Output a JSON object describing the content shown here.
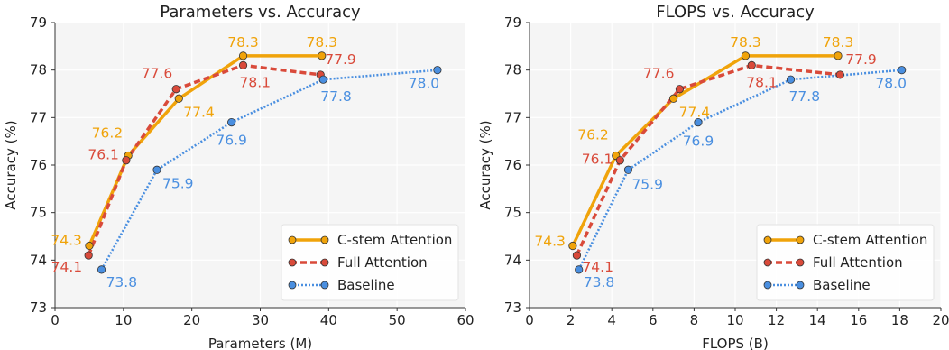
{
  "chart_data": [
    {
      "type": "line",
      "title": "Parameters vs. Accuracy",
      "xlabel": "Parameters (M)",
      "ylabel": "Accuracy (%)",
      "xlim": [
        0,
        60
      ],
      "ylim": [
        73,
        79
      ],
      "xticks": [
        "0",
        "10",
        "20",
        "30",
        "40",
        "50",
        "60"
      ],
      "yticks": [
        "73",
        "74",
        "75",
        "76",
        "77",
        "78",
        "79"
      ],
      "grid": true,
      "legend_position": "bottom-right",
      "series": [
        {
          "name": "C-stem Attention",
          "color": "#f0a30a",
          "style": "solid",
          "points": [
            {
              "x": 5.0,
              "y": 74.3,
              "label": "74.3"
            },
            {
              "x": 10.7,
              "y": 76.2,
              "label": "76.2"
            },
            {
              "x": 18.1,
              "y": 77.4,
              "label": "77.4"
            },
            {
              "x": 27.5,
              "y": 78.3,
              "label": "78.3"
            },
            {
              "x": 39.0,
              "y": 78.3,
              "label": "78.3"
            }
          ]
        },
        {
          "name": "Full Attention",
          "color": "#d94a3a",
          "style": "dashed",
          "points": [
            {
              "x": 4.9,
              "y": 74.1,
              "label": "74.1"
            },
            {
              "x": 10.4,
              "y": 76.1,
              "label": "76.1"
            },
            {
              "x": 17.7,
              "y": 77.6,
              "label": "77.6"
            },
            {
              "x": 27.5,
              "y": 78.1,
              "label": "78.1"
            },
            {
              "x": 38.8,
              "y": 77.9,
              "label": "77.9"
            }
          ]
        },
        {
          "name": "Baseline",
          "color": "#4a8fe0",
          "style": "dotted",
          "points": [
            {
              "x": 6.8,
              "y": 73.8,
              "label": "73.8"
            },
            {
              "x": 14.9,
              "y": 75.9,
              "label": "75.9"
            },
            {
              "x": 25.8,
              "y": 76.9,
              "label": "76.9"
            },
            {
              "x": 39.2,
              "y": 77.8,
              "label": "77.8"
            },
            {
              "x": 55.9,
              "y": 78.0,
              "label": "78.0"
            }
          ]
        }
      ]
    },
    {
      "type": "line",
      "title": "FLOPS vs. Accuracy",
      "xlabel": "FLOPS (B)",
      "ylabel": "Accuracy (%)",
      "xlim": [
        0,
        20
      ],
      "ylim": [
        73,
        79
      ],
      "xticks": [
        "0",
        "2",
        "4",
        "6",
        "8",
        "10",
        "12",
        "14",
        "16",
        "18",
        "20"
      ],
      "yticks": [
        "73",
        "74",
        "75",
        "76",
        "77",
        "78",
        "79"
      ],
      "grid": true,
      "legend_position": "bottom-right",
      "series": [
        {
          "name": "C-stem Attention",
          "color": "#f0a30a",
          "style": "solid",
          "points": [
            {
              "x": 2.1,
              "y": 74.3,
              "label": "74.3"
            },
            {
              "x": 4.2,
              "y": 76.2,
              "label": "76.2"
            },
            {
              "x": 7.0,
              "y": 77.4,
              "label": "77.4"
            },
            {
              "x": 10.5,
              "y": 78.3,
              "label": "78.3"
            },
            {
              "x": 15.0,
              "y": 78.3,
              "label": "78.3"
            }
          ]
        },
        {
          "name": "Full Attention",
          "color": "#d94a3a",
          "style": "dashed",
          "points": [
            {
              "x": 2.3,
              "y": 74.1,
              "label": "74.1"
            },
            {
              "x": 4.4,
              "y": 76.1,
              "label": "76.1"
            },
            {
              "x": 7.3,
              "y": 77.6,
              "label": "77.6"
            },
            {
              "x": 10.8,
              "y": 78.1,
              "label": "78.1"
            },
            {
              "x": 15.1,
              "y": 77.9,
              "label": "77.9"
            }
          ]
        },
        {
          "name": "Baseline",
          "color": "#4a8fe0",
          "style": "dotted",
          "points": [
            {
              "x": 2.4,
              "y": 73.8,
              "label": "73.8"
            },
            {
              "x": 4.8,
              "y": 75.9,
              "label": "75.9"
            },
            {
              "x": 8.2,
              "y": 76.9,
              "label": "76.9"
            },
            {
              "x": 12.7,
              "y": 77.8,
              "label": "77.8"
            },
            {
              "x": 18.1,
              "y": 78.0,
              "label": "78.0"
            }
          ]
        }
      ]
    }
  ]
}
